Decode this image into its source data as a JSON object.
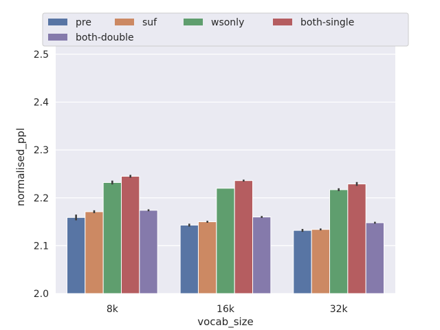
{
  "chart_data": {
    "type": "bar",
    "xlabel": "vocab_size",
    "ylabel": "normalised_ppl",
    "ylim": [
      2.0,
      2.53
    ],
    "yticks": [
      "2.0",
      "2.1",
      "2.2",
      "2.3",
      "2.4",
      "2.5"
    ],
    "categories": [
      "8k",
      "16k",
      "32k"
    ],
    "grid": true,
    "legend_position": "top",
    "series": [
      {
        "name": "pre",
        "color": "#5875a4",
        "values": [
          2.159,
          2.143,
          2.132
        ],
        "error": [
          0.006,
          0.003,
          0.003
        ]
      },
      {
        "name": "suf",
        "color": "#cc8963",
        "values": [
          2.171,
          2.15,
          2.134
        ],
        "error": [
          0.003,
          0.002,
          0.002
        ]
      },
      {
        "name": "wsonly",
        "color": "#5f9e6e",
        "values": [
          2.232,
          2.22,
          2.217
        ],
        "error": [
          0.004,
          0.0,
          0.003
        ]
      },
      {
        "name": "both-single",
        "color": "#b55d60",
        "values": [
          2.245,
          2.236,
          2.229
        ],
        "error": [
          0.003,
          0.002,
          0.004
        ]
      },
      {
        "name": "both-double",
        "color": "#857aab",
        "values": [
          2.174,
          2.16,
          2.148
        ],
        "error": [
          0.002,
          0.002,
          0.002
        ]
      }
    ]
  }
}
